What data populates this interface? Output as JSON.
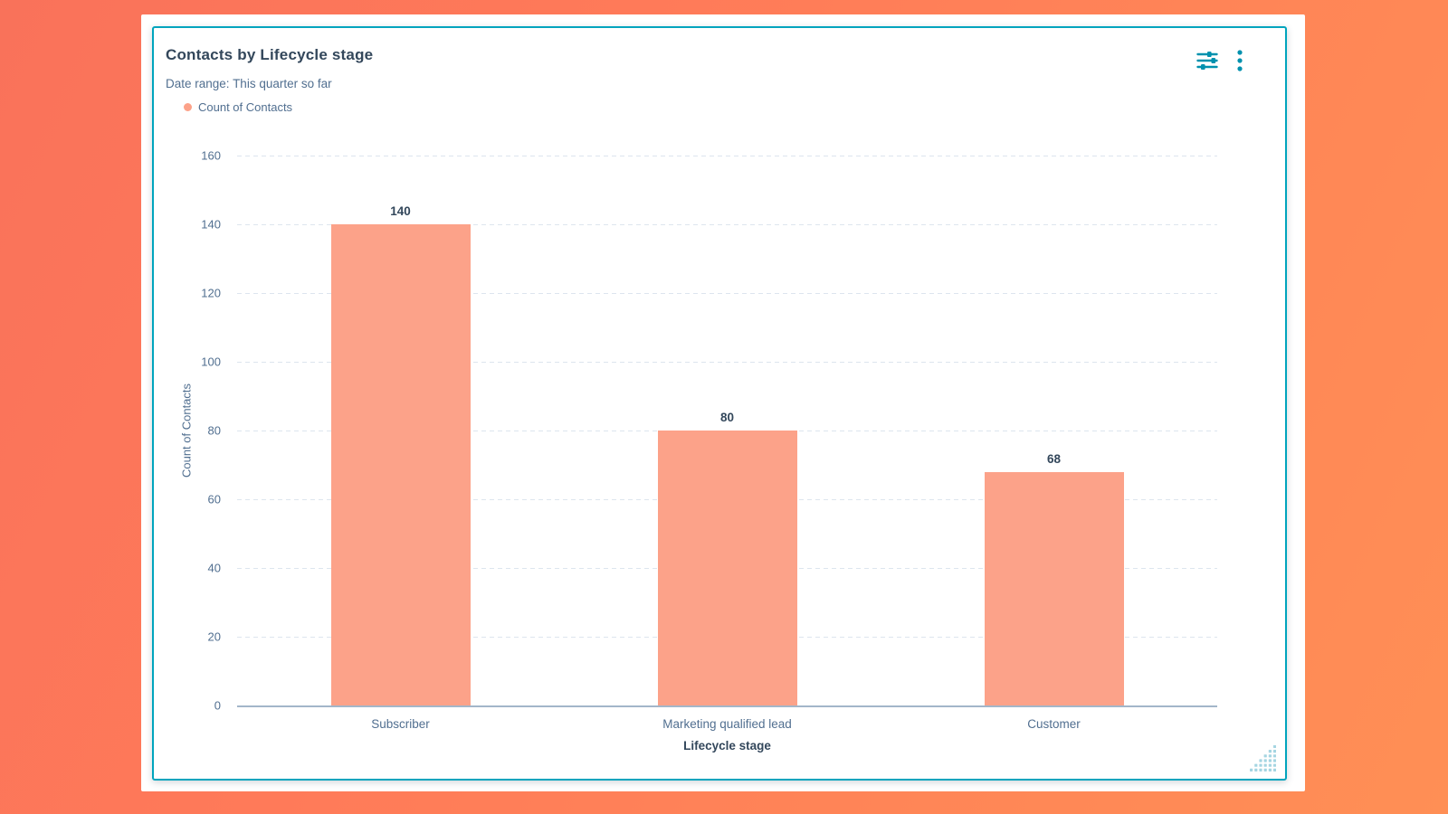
{
  "background": {
    "gradient_from": "#f9725a",
    "gradient_to": "#ff8f55"
  },
  "card": {
    "title": "Contacts by Lifecycle stage",
    "date_range": {
      "label": "Date range:",
      "value": "This quarter so far"
    },
    "legend": {
      "items": [
        {
          "label": "Count of Contacts",
          "color": "#fca289"
        }
      ]
    },
    "accent_border_color": "#00a4bd",
    "icon_color": "#0091ae",
    "resize_handle_color": "#a5d5e2"
  },
  "chart_data": {
    "type": "bar",
    "title": "Contacts by Lifecycle stage",
    "categories": [
      "Subscriber",
      "Marketing qualified lead",
      "Customer"
    ],
    "series": [
      {
        "name": "Count of Contacts",
        "color": "#fca289",
        "values": [
          140,
          80,
          68
        ]
      }
    ],
    "data_labels": [
      "140",
      "80",
      "68"
    ],
    "xlabel": "Lifecycle stage",
    "ylabel": "Count of Contacts",
    "ylim": [
      0,
      160
    ],
    "yticks": [
      0,
      20,
      40,
      60,
      80,
      100,
      120,
      140,
      160
    ],
    "grid": "horizontal-dashed",
    "legend_position": "top-left",
    "colors": {
      "grid_line": "#dde5ee",
      "axis_line": "#a3b6c9",
      "tick_text": "#516f90",
      "label_text": "#33475b"
    }
  }
}
